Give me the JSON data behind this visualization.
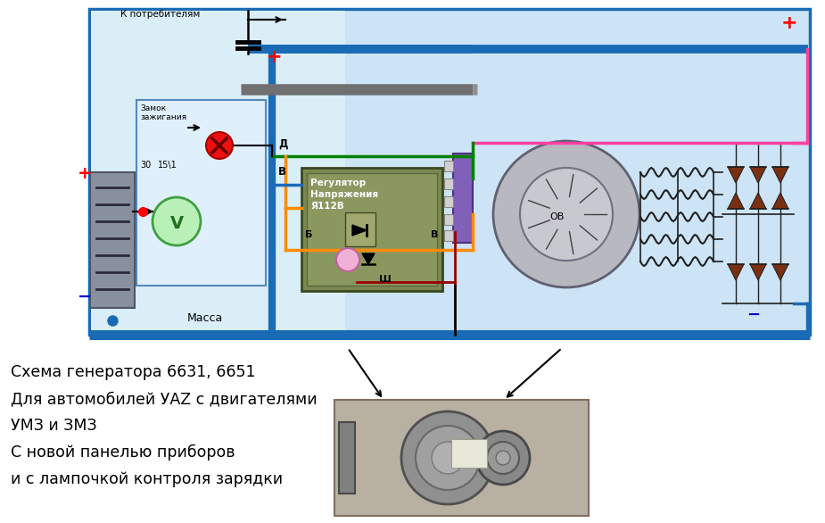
{
  "bg_color": "#ffffff",
  "diagram_bg": "#cce4f5",
  "title_lines": [
    "Схема генератора 6631, 6651",
    "Для автомобилей УАΖ с двигателями",
    "УМЗ и ЗМЗ",
    "С новой панелью приборов",
    "и с лампочкой контроля зарядки"
  ],
  "plus_color": "#ff0000",
  "minus_color": "#0000cd",
  "wire_blue": "#1a6bb5",
  "wire_green": "#008000",
  "wire_pink": "#ff40a0",
  "wire_orange": "#ff8c00",
  "wire_red": "#cc0000",
  "wire_black": "#000000",
  "wire_dark_red": "#8b0000",
  "diode_color": "#7a3010"
}
